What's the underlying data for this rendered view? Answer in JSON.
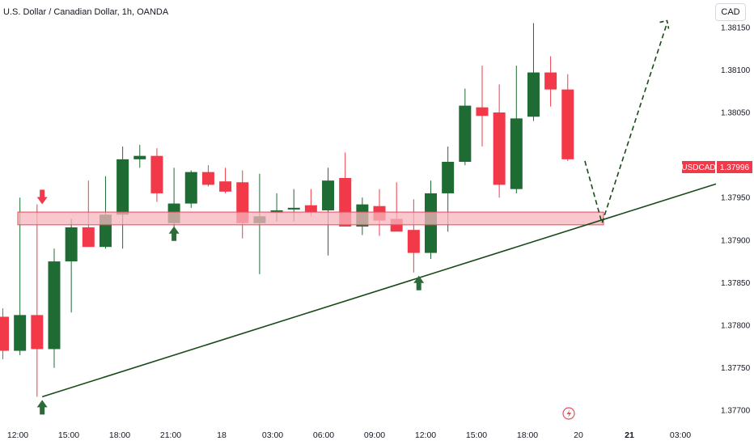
{
  "header": {
    "title": "U.S. Dollar / Canadian Dollar, 1h, OANDA",
    "currency_button": "CAD"
  },
  "price_tag": {
    "symbol": "USDCAD",
    "price": "1.37996"
  },
  "colors": {
    "up": "#1e6b33",
    "down": "#f2394a",
    "zone_fill": "#f7b6bd",
    "zone_border": "#e8485a",
    "trend": "#1a4a1a",
    "arrow_up": "#2d6a3a",
    "arrow_down": "#ef3a4c",
    "event": "#e05060"
  },
  "chart_data": {
    "type": "candlestick",
    "symbol": "USDCAD",
    "interval": "1h",
    "ylim": [
      1.3768,
      1.3819
    ],
    "yticks": [
      "1.38150",
      "1.38100",
      "1.38050",
      "1.37950",
      "1.37900",
      "1.37850",
      "1.37800",
      "1.37750",
      "1.37700"
    ],
    "xticks": [
      {
        "label": "12:00",
        "bold": false
      },
      {
        "label": "15:00",
        "bold": false
      },
      {
        "label": "18:00",
        "bold": false
      },
      {
        "label": "21:00",
        "bold": false
      },
      {
        "label": "18",
        "bold": false
      },
      {
        "label": "03:00",
        "bold": false
      },
      {
        "label": "06:00",
        "bold": false
      },
      {
        "label": "09:00",
        "bold": false
      },
      {
        "label": "12:00",
        "bold": false
      },
      {
        "label": "15:00",
        "bold": false
      },
      {
        "label": "18:00",
        "bold": false
      },
      {
        "label": "20",
        "bold": false
      },
      {
        "label": "21",
        "bold": true
      },
      {
        "label": "03:00",
        "bold": false
      }
    ],
    "candles": [
      {
        "o": 1.3781,
        "h": 1.3782,
        "l": 1.3776,
        "c": 1.3777
      },
      {
        "o": 1.3777,
        "h": 1.3795,
        "l": 1.37765,
        "c": 1.37812
      },
      {
        "o": 1.37812,
        "h": 1.37942,
        "l": 1.37716,
        "c": 1.37772
      },
      {
        "o": 1.37772,
        "h": 1.3789,
        "l": 1.3775,
        "c": 1.37875
      },
      {
        "o": 1.37875,
        "h": 1.37925,
        "l": 1.37815,
        "c": 1.37915
      },
      {
        "o": 1.37915,
        "h": 1.3797,
        "l": 1.37895,
        "c": 1.37892
      },
      {
        "o": 1.37892,
        "h": 1.37975,
        "l": 1.3789,
        "c": 1.3793
      },
      {
        "o": 1.3793,
        "h": 1.3801,
        "l": 1.3789,
        "c": 1.37995
      },
      {
        "o": 1.37995,
        "h": 1.38012,
        "l": 1.37985,
        "c": 1.37999
      },
      {
        "o": 1.37999,
        "h": 1.38008,
        "l": 1.37945,
        "c": 1.37955
      },
      {
        "o": 1.3792,
        "h": 1.37985,
        "l": 1.37915,
        "c": 1.37943
      },
      {
        "o": 1.37943,
        "h": 1.37982,
        "l": 1.37938,
        "c": 1.3798
      },
      {
        "o": 1.3798,
        "h": 1.37988,
        "l": 1.37963,
        "c": 1.37965
      },
      {
        "o": 1.37969,
        "h": 1.37985,
        "l": 1.37955,
        "c": 1.37957
      },
      {
        "o": 1.37968,
        "h": 1.37982,
        "l": 1.37902,
        "c": 1.3792
      },
      {
        "o": 1.3792,
        "h": 1.37978,
        "l": 1.3786,
        "c": 1.37928
      },
      {
        "o": 1.37932,
        "h": 1.37955,
        "l": 1.37922,
        "c": 1.37935
      },
      {
        "o": 1.37936,
        "h": 1.3796,
        "l": 1.37922,
        "c": 1.37938
      },
      {
        "o": 1.37941,
        "h": 1.3796,
        "l": 1.37928,
        "c": 1.37933
      },
      {
        "o": 1.37935,
        "h": 1.37985,
        "l": 1.37882,
        "c": 1.3797
      },
      {
        "o": 1.37973,
        "h": 1.38003,
        "l": 1.37918,
        "c": 1.37916
      },
      {
        "o": 1.37916,
        "h": 1.3795,
        "l": 1.37906,
        "c": 1.37942
      },
      {
        "o": 1.3794,
        "h": 1.3796,
        "l": 1.37905,
        "c": 1.37923
      },
      {
        "o": 1.37925,
        "h": 1.37968,
        "l": 1.37913,
        "c": 1.3791
      },
      {
        "o": 1.37912,
        "h": 1.37948,
        "l": 1.37862,
        "c": 1.37885
      },
      {
        "o": 1.37885,
        "h": 1.3797,
        "l": 1.37878,
        "c": 1.37955
      },
      {
        "o": 1.37955,
        "h": 1.3801,
        "l": 1.3791,
        "c": 1.37992
      },
      {
        "o": 1.37992,
        "h": 1.38078,
        "l": 1.37988,
        "c": 1.38058
      },
      {
        "o": 1.38056,
        "h": 1.38105,
        "l": 1.3801,
        "c": 1.38046
      },
      {
        "o": 1.3805,
        "h": 1.38083,
        "l": 1.3795,
        "c": 1.37965
      },
      {
        "o": 1.3796,
        "h": 1.38105,
        "l": 1.37955,
        "c": 1.38043
      },
      {
        "o": 1.38045,
        "h": 1.38155,
        "l": 1.3804,
        "c": 1.38097
      },
      {
        "o": 1.38097,
        "h": 1.38116,
        "l": 1.38057,
        "c": 1.38077
      },
      {
        "o": 1.38077,
        "h": 1.38095,
        "l": 1.37993,
        "c": 1.37995
      }
    ],
    "annotations": {
      "support_zone": {
        "from_index": 0,
        "to_index": 38,
        "y_top": 1.37933,
        "y_bottom": 1.37918
      },
      "trendline": {
        "from": {
          "index": 2.3,
          "y": 1.37716
        },
        "to": {
          "index": 45.5,
          "y": 1.37966
        }
      },
      "projection": [
        {
          "index": 34.0,
          "y": 1.37993
        },
        {
          "index": 35.0,
          "y": 1.3792
        },
        {
          "index": 38.8,
          "y": 1.38155
        }
      ],
      "up_arrows": [
        {
          "index": 2.3,
          "y": 1.37716
        },
        {
          "index": 10.0,
          "y": 1.3792
        },
        {
          "index": 24.3,
          "y": 1.37862
        }
      ],
      "down_arrows": [
        {
          "index": 2.3,
          "y": 1.37945
        }
      ]
    }
  }
}
